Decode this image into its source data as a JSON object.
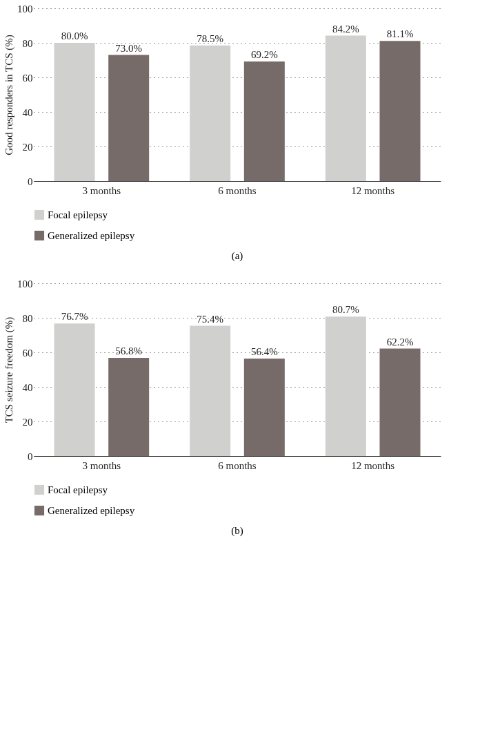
{
  "chart_data": [
    {
      "type": "bar",
      "title": "(a)",
      "ylabel": "Good responders in TCS (%)",
      "categories": [
        "3 months",
        "6 months",
        "12 months"
      ],
      "series": [
        {
          "name": "Focal epilepsy",
          "color": "#d0d0ce",
          "values": [
            80.0,
            78.5,
            84.2
          ],
          "value_labels": [
            "80.0%",
            "78.5%",
            "84.2%"
          ]
        },
        {
          "name": "Generalized epilepsy",
          "color": "#766b68",
          "values": [
            73.0,
            69.2,
            81.1
          ],
          "value_labels": [
            "73.0%",
            "69.2%",
            "81.1%"
          ]
        }
      ],
      "ylim": [
        0,
        100
      ],
      "yticks": [
        0,
        20,
        40,
        60,
        80,
        100
      ],
      "grid": "y",
      "legend": "bottom left"
    },
    {
      "type": "bar",
      "title": "(b)",
      "ylabel": "TCS seizure freedom (%)",
      "categories": [
        "3 months",
        "6 months",
        "12 months"
      ],
      "series": [
        {
          "name": "Focal epilepsy",
          "color": "#d0d0ce",
          "values": [
            76.7,
            75.4,
            80.7
          ],
          "value_labels": [
            "76.7%",
            "75.4%",
            "80.7%"
          ]
        },
        {
          "name": "Generalized epilepsy",
          "color": "#766b68",
          "values": [
            56.8,
            56.4,
            62.2
          ],
          "value_labels": [
            "56.8%",
            "56.4%",
            "62.2%"
          ]
        }
      ],
      "ylim": [
        0,
        100
      ],
      "yticks": [
        0,
        20,
        40,
        60,
        80,
        100
      ],
      "grid": "y",
      "legend": "bottom left"
    }
  ]
}
